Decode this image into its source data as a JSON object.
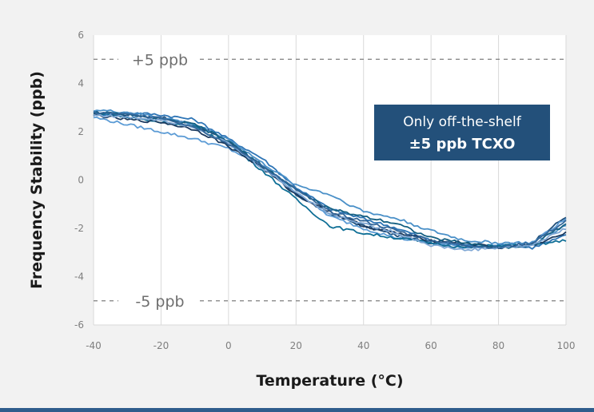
{
  "colors": {
    "background": "#f2f2f2",
    "plot_background": "#ffffff",
    "grid": "#d9d9d9",
    "limit_line": "#7f7f7f",
    "callout_fill": "#23507a",
    "bottom_bar": "#2f5d8c",
    "series": [
      "#1f4e79",
      "#2e75b6",
      "#5b9bd5",
      "#0f6f96",
      "#1b3a5f",
      "#4a90c8",
      "#156082",
      "#7fa7d4",
      "#336699"
    ]
  },
  "chart_data": {
    "type": "line",
    "title": "",
    "xlabel": "Temperature (°C)",
    "ylabel": "Frequency Stability (ppb)",
    "xlim": [
      -40,
      100
    ],
    "ylim": [
      -6,
      6
    ],
    "x_ticks": [
      "-40",
      "-20",
      "0",
      "20",
      "40",
      "60",
      "80",
      "100"
    ],
    "y_ticks": [
      "6",
      "4",
      "2",
      "0",
      "-2",
      "-4",
      "-6"
    ],
    "grid": "vertical",
    "legend": "none",
    "limit_lines": [
      {
        "value": 5,
        "label": "+5 ppb"
      },
      {
        "value": -5,
        "label": "-5 ppb"
      }
    ],
    "callout": {
      "line1": "Only off-the-shelf",
      "line2": "±5 ppb TCXO"
    },
    "x": [
      -40,
      -30,
      -20,
      -10,
      0,
      10,
      20,
      30,
      40,
      50,
      60,
      70,
      80,
      90,
      100
    ],
    "series": [
      {
        "values": [
          2.8,
          2.7,
          2.6,
          2.3,
          1.6,
          0.6,
          -0.6,
          -1.4,
          -1.9,
          -2.3,
          -2.6,
          -2.7,
          -2.8,
          -2.6,
          -1.5
        ]
      },
      {
        "values": [
          2.7,
          2.8,
          2.7,
          2.5,
          1.7,
          0.9,
          -0.3,
          -1.2,
          -1.6,
          -2.0,
          -2.5,
          -2.7,
          -2.7,
          -2.8,
          -2.3
        ]
      },
      {
        "values": [
          2.6,
          2.3,
          2.0,
          1.7,
          1.3,
          0.6,
          -0.5,
          -1.5,
          -2.0,
          -2.4,
          -2.6,
          -2.8,
          -2.7,
          -2.6,
          -1.6
        ]
      },
      {
        "values": [
          2.8,
          2.6,
          2.4,
          2.2,
          1.5,
          0.4,
          -0.8,
          -1.9,
          -2.2,
          -2.4,
          -2.6,
          -2.8,
          -2.7,
          -2.7,
          -2.5
        ]
      },
      {
        "values": [
          2.7,
          2.5,
          2.4,
          2.1,
          1.4,
          0.5,
          -0.6,
          -1.3,
          -1.9,
          -2.2,
          -2.5,
          -2.6,
          -2.8,
          -2.7,
          -2.2
        ]
      },
      {
        "values": [
          2.9,
          2.8,
          2.6,
          2.3,
          1.7,
          0.7,
          -0.2,
          -0.6,
          -1.3,
          -1.6,
          -2.1,
          -2.5,
          -2.6,
          -2.6,
          -1.9
        ]
      },
      {
        "values": [
          2.8,
          2.7,
          2.5,
          2.3,
          1.6,
          0.6,
          -0.4,
          -1.2,
          -1.5,
          -1.8,
          -2.4,
          -2.6,
          -2.8,
          -2.7,
          -1.8
        ]
      },
      {
        "values": [
          2.7,
          2.6,
          2.5,
          2.2,
          1.5,
          0.5,
          -0.5,
          -1.4,
          -1.8,
          -2.2,
          -2.7,
          -2.9,
          -2.8,
          -2.7,
          -2.0
        ]
      },
      {
        "values": [
          2.8,
          2.7,
          2.6,
          2.2,
          1.5,
          0.6,
          -0.4,
          -1.3,
          -1.7,
          -2.1,
          -2.5,
          -2.7,
          -2.8,
          -2.6,
          -1.7
        ]
      }
    ]
  }
}
